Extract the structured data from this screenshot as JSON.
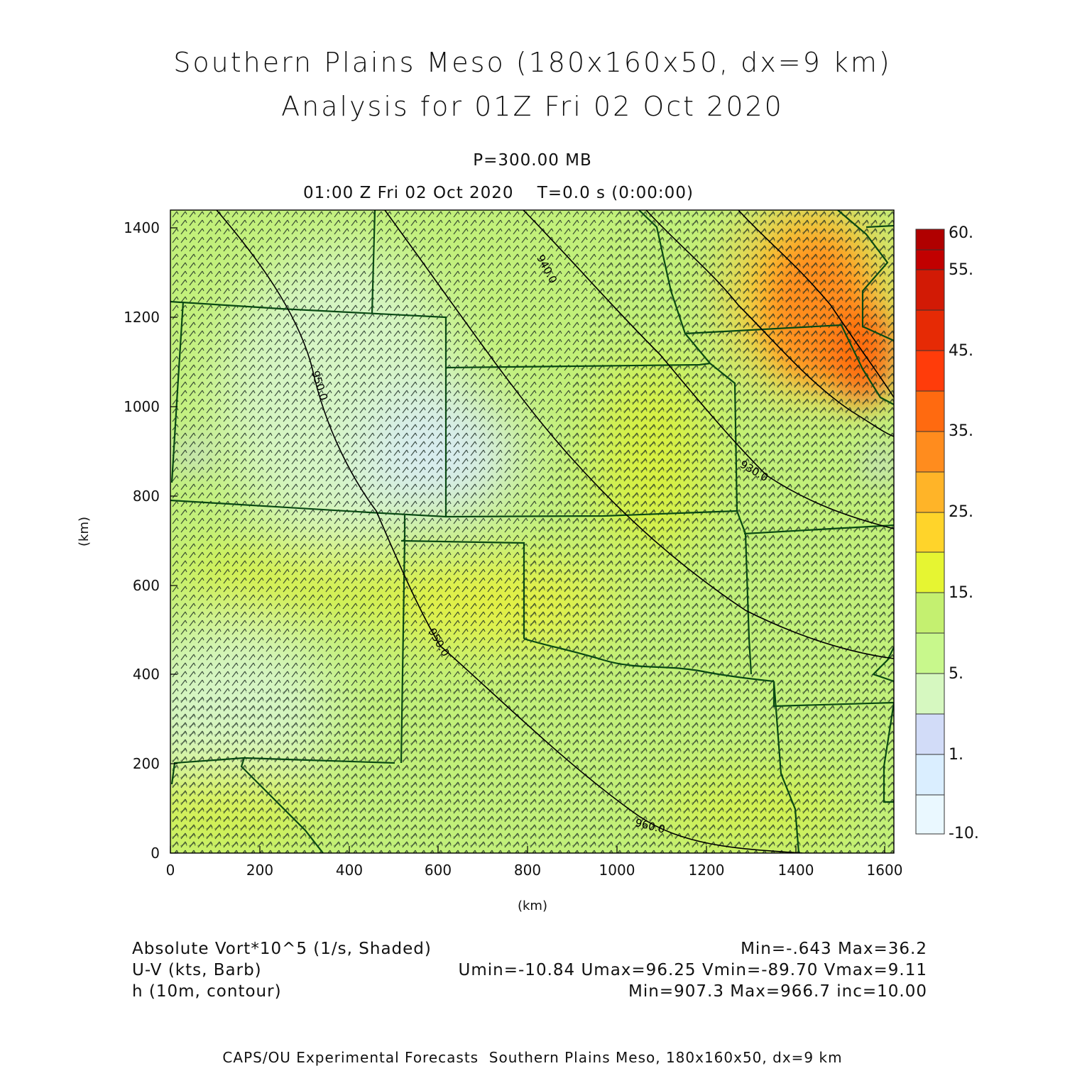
{
  "title": {
    "line1": "Southern Plains Meso (180x160x50, dx=9 km)",
    "line2": "Analysis for 01Z Fri 02 Oct 2020"
  },
  "subtitle": {
    "level": "P=300.00 MB",
    "time": "01:00 Z Fri 02 Oct 2020    T=0.0 s (0:00:00)"
  },
  "axes": {
    "x_label": "(km)",
    "y_label": "(km)",
    "x_range": [
      0,
      1620
    ],
    "y_range": [
      0,
      1440
    ],
    "x_ticks": [
      "0",
      "200",
      "400",
      "600",
      "800",
      "1000",
      "1200",
      "1400",
      "1600"
    ],
    "y_ticks": [
      "0",
      "200",
      "400",
      "600",
      "800",
      "1000",
      "1200",
      "1400"
    ]
  },
  "colorbar": {
    "labels": [
      "60.",
      "55.",
      "45.",
      "35.",
      "25.",
      "15.",
      "5.",
      "1.",
      "-10."
    ],
    "colors": [
      "#b00000",
      "#d21a05",
      "#ee3a0a",
      "#ff6a10",
      "#ff8c1e",
      "#ffb428",
      "#ffd42a",
      "#f0f530",
      "#d8f530",
      "#c0f570",
      "#b4f078",
      "#d6f8c0",
      "#d2dcf8",
      "#daeeff",
      "#eaf8ff"
    ]
  },
  "legend": {
    "left": [
      "Absolute Vort*10^5 (1/s, Shaded)",
      "U-V (kts, Barb)",
      "h (10m, contour)"
    ],
    "right": [
      "Min=-.643 Max=36.2",
      "Umin=-10.84 Umax=96.25 Vmin=-89.70 Vmax=9.11",
      "Min=907.3 Max=966.7 inc=10.00"
    ]
  },
  "contour_labels": [
    "940.0",
    "950.0",
    "930.0",
    "950.0",
    "960.0"
  ],
  "footer": "CAPS/OU Experimental Forecasts  Southern Plains Meso, 180x160x50, dx=9 km",
  "colors": {
    "background_field": "#c2f07a",
    "border": "#0a4a14",
    "contour": "#000000",
    "barb": "#1a2a22"
  }
}
